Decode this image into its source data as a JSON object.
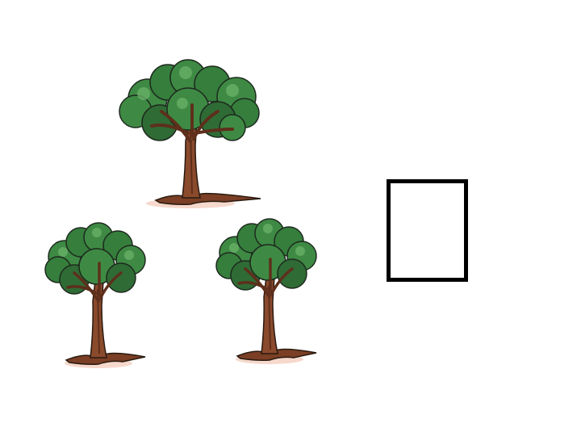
{
  "scene": {
    "tree_count": 3,
    "trees": [
      {
        "id": "top",
        "icon": "tree-icon"
      },
      {
        "id": "left",
        "icon": "tree-icon"
      },
      {
        "id": "right",
        "icon": "tree-icon"
      }
    ],
    "answer_box": {
      "content": ""
    }
  },
  "colors": {
    "background": "#ffffff",
    "foliage_dark": "#2f6b35",
    "foliage_mid": "#3e8a44",
    "foliage_light": "#6bb26a",
    "trunk": "#8a4a2c",
    "trunk_shadow": "#5e2f1b",
    "outline": "#1e2a1e",
    "box_border": "#000000"
  }
}
